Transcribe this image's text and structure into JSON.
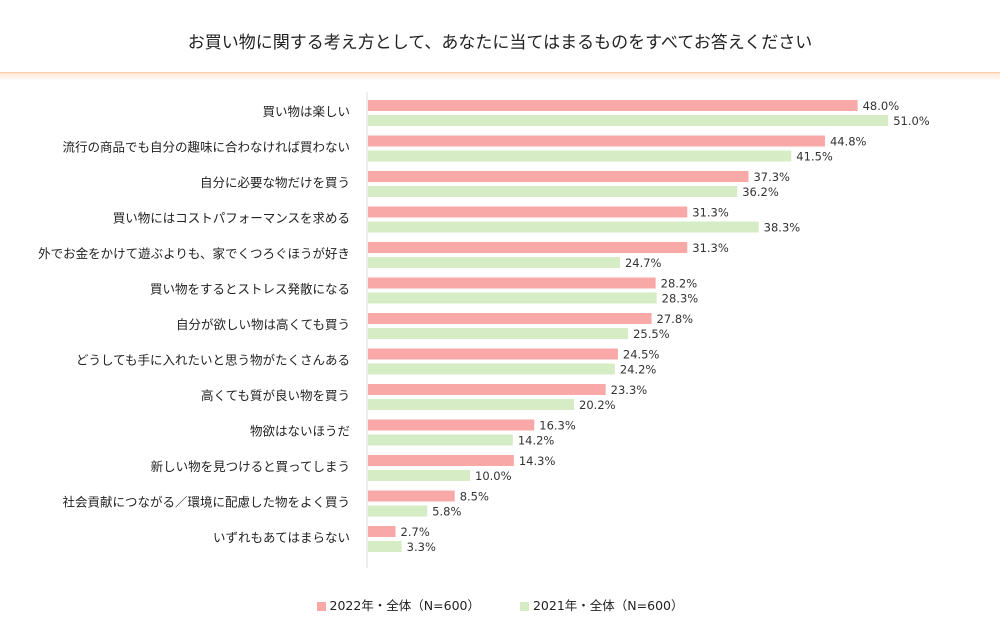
{
  "chart_data": {
    "type": "bar",
    "orientation": "horizontal",
    "title": "お買い物に関する考え方として、あなたに当てはまるものをすべてお答えください",
    "categories": [
      "買い物は楽しい",
      "流行の商品でも自分の趣味に合わなければ買わない",
      "自分に必要な物だけを買う",
      "買い物にはコストパフォーマンスを求める",
      "外でお金をかけて遊ぶよりも、家でくつろぐほうが好き",
      "買い物をするとストレス発散になる",
      "自分が欲しい物は高くても買う",
      "どうしても手に入れたいと思う物がたくさんある",
      "高くても質が良い物を買う",
      "物欲はないほうだ",
      "新しい物を見つけると買ってしまう",
      "社会貢献につながる／環境に配慮した物をよく買う",
      "いずれもあてはまらない"
    ],
    "series": [
      {
        "name": "2022年・全体（N=600）",
        "color": "#f9a8a8",
        "values": [
          48.0,
          44.8,
          37.3,
          31.3,
          31.3,
          28.2,
          27.8,
          24.5,
          23.3,
          16.3,
          14.3,
          8.5,
          2.7
        ]
      },
      {
        "name": "2021年・全体（N=600）",
        "color": "#d6ecc4",
        "values": [
          51.0,
          41.5,
          36.2,
          38.3,
          24.7,
          28.3,
          25.5,
          24.2,
          20.2,
          14.2,
          10.0,
          5.8,
          3.3
        ]
      }
    ],
    "value_suffix": "%",
    "legend_position": "bottom",
    "grid": false
  }
}
